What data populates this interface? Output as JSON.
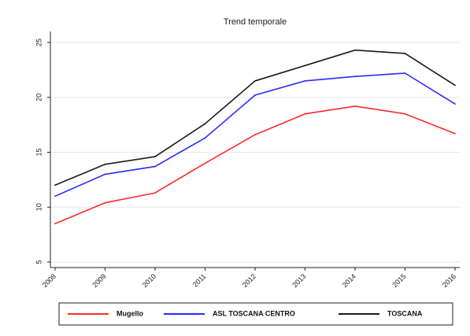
{
  "chart_data": {
    "type": "line",
    "title": "Trend temporale",
    "xlabel": "",
    "ylabel": "",
    "categories": [
      "2008",
      "2009",
      "2010",
      "2011",
      "2012",
      "2013",
      "2014",
      "2015",
      "2016"
    ],
    "ylim": [
      4.5,
      26
    ],
    "yticks": [
      5,
      10,
      15,
      20,
      25
    ],
    "grid": true,
    "legend_position": "bottom",
    "series": [
      {
        "name": "Mugello",
        "color": "#ff2a2a",
        "values": [
          8.5,
          10.4,
          11.3,
          14.0,
          16.6,
          18.5,
          19.2,
          18.5,
          16.7
        ]
      },
      {
        "name": "ASL TOSCANA CENTRO",
        "color": "#2a2aff",
        "values": [
          11.0,
          13.0,
          13.7,
          16.3,
          20.2,
          21.5,
          21.9,
          22.2,
          19.4
        ]
      },
      {
        "name": "TOSCANA",
        "color": "#1a1a1a",
        "values": [
          12.0,
          13.9,
          14.6,
          17.6,
          21.5,
          22.9,
          24.3,
          24.0,
          21.1
        ]
      }
    ]
  }
}
